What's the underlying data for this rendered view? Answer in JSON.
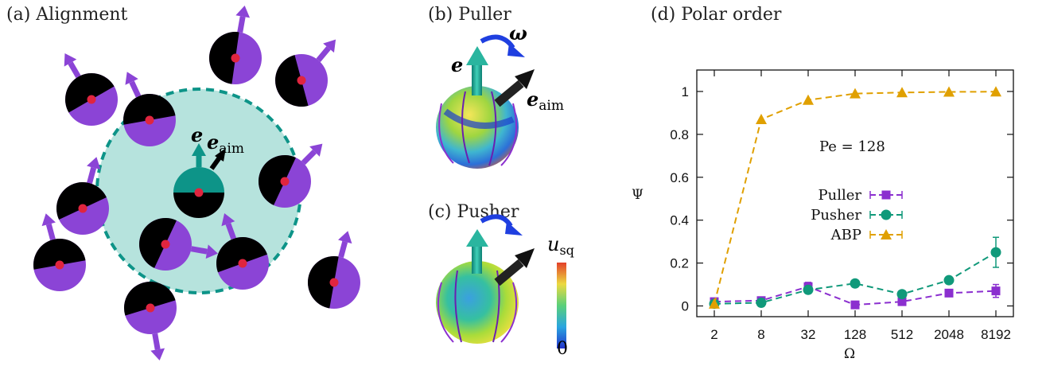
{
  "panels": {
    "a": {
      "label": "(a) Alignment",
      "vec_e": "e",
      "vec_eaim": "e",
      "vec_eaim_sub": "aim"
    },
    "b": {
      "label": "(b) Puller",
      "vec_e": "e",
      "vec_eaim": "e",
      "vec_eaim_sub": "aim",
      "vec_omega": "ω"
    },
    "c": {
      "label": "(c) Pusher",
      "colorbar_label": "u",
      "colorbar_sub": "sq",
      "colorbar_min": "0"
    },
    "d": {
      "label": "(d) Polar order",
      "annotation": "Pe = 128"
    }
  },
  "colors": {
    "purple": "#8b44d6",
    "teal": "#0d9488",
    "orange": "#e0a000",
    "red": "#e0253f",
    "disk_fill": "#b6e3dd",
    "omega_arrow": "#1f3fe0"
  },
  "chart_data": {
    "type": "line",
    "xlabel": "Ω",
    "ylabel": "Ψ",
    "x_scale": "log2",
    "x_ticks": [
      "2",
      "8",
      "32",
      "128",
      "512",
      "2048",
      "8192"
    ],
    "x": [
      2,
      8,
      32,
      128,
      512,
      2048,
      8192
    ],
    "y_ticks": [
      "0",
      "0.2",
      "0.4",
      "0.6",
      "0.8",
      "1"
    ],
    "ylim": [
      -0.05,
      1.1
    ],
    "legend_position": "center-left",
    "series": [
      {
        "name": "Puller",
        "color": "#8b2fcf",
        "marker": "square",
        "values": [
          0.02,
          0.025,
          0.09,
          0.005,
          0.02,
          0.06,
          0.07
        ],
        "errors": [
          0.01,
          0.005,
          0.02,
          0.005,
          0.005,
          0.01,
          0.03
        ]
      },
      {
        "name": "Pusher",
        "color": "#10997a",
        "marker": "circle",
        "values": [
          0.01,
          0.015,
          0.075,
          0.105,
          0.055,
          0.12,
          0.25
        ],
        "errors": [
          0.005,
          0.005,
          0.01,
          0.01,
          0.01,
          0.015,
          0.07
        ]
      },
      {
        "name": "ABP",
        "color": "#e0a000",
        "marker": "triangle",
        "values": [
          0.01,
          0.87,
          0.96,
          0.99,
          0.995,
          0.998,
          0.999
        ],
        "errors": [
          0,
          0,
          0,
          0,
          0,
          0,
          0
        ]
      }
    ]
  }
}
